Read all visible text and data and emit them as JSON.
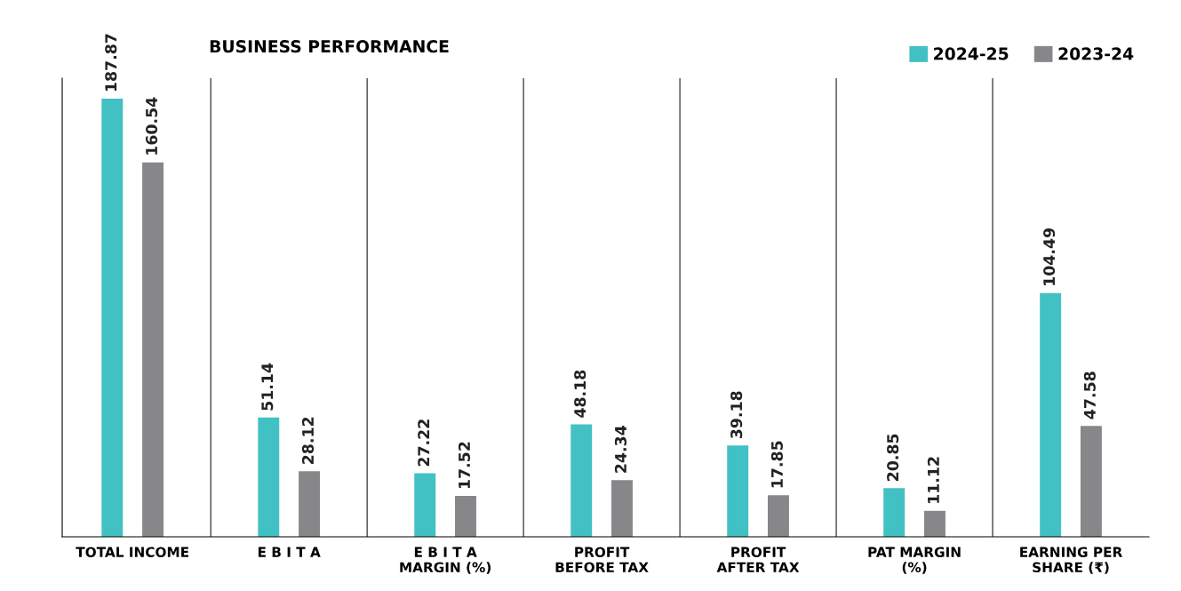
{
  "chart_data": {
    "type": "bar",
    "title": "BUSINESS PERFORMANCE",
    "categories": [
      "TOTAL INCOME",
      "E B I T A",
      "E B I T A\nMARGIN (%)",
      "PROFIT\nBEFORE TAX",
      "PROFIT\nAFTER TAX",
      "PAT MARGIN\n(%)",
      "EARNING PER\nSHARE (₹)"
    ],
    "series": [
      {
        "name": "2024-25",
        "color": "#41c1c4",
        "values": [
          187.87,
          51.14,
          27.22,
          48.18,
          39.18,
          20.85,
          104.49
        ]
      },
      {
        "name": "2023-24",
        "color": "#87878a",
        "values": [
          160.54,
          28.12,
          17.52,
          24.34,
          17.85,
          11.12,
          47.58
        ]
      }
    ],
    "data_labels": true,
    "grid": "x",
    "legend": "top right"
  }
}
